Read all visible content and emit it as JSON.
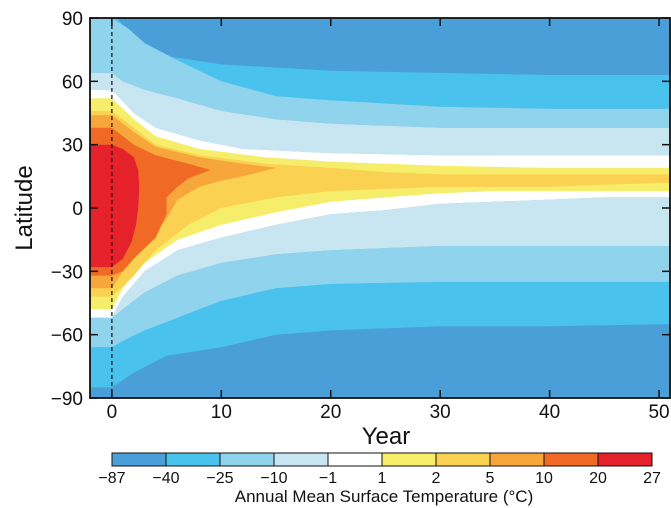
{
  "chart_data": {
    "type": "heatmap",
    "subtype": "filled-contour",
    "xlabel": "Year",
    "ylabel": "Latitude",
    "xlim": [
      -2,
      51
    ],
    "ylim": [
      -90,
      90
    ],
    "x_ticks": [
      0,
      10,
      20,
      30,
      40,
      50
    ],
    "y_ticks": [
      -90,
      -60,
      -30,
      0,
      30,
      60,
      90
    ],
    "x_tick_labels": [
      "0",
      "10",
      "20",
      "30",
      "40",
      "50"
    ],
    "y_tick_labels": [
      "−90",
      "−60",
      "−30",
      "0",
      "30",
      "60",
      "90"
    ],
    "reference_line_x": 0,
    "colorbar": {
      "title": "Annual Mean Surface Temperature (°C)",
      "levels": [
        "−87",
        "−40",
        "−25",
        "−10",
        "−1",
        "1",
        "2",
        "5",
        "10",
        "20",
        "27"
      ],
      "colors": [
        "#4a9fd8",
        "#49c3ed",
        "#8fd4ec",
        "#c8e6f1",
        "#ffffff",
        "#f6ee6a",
        "#fbd152",
        "#f7a63b",
        "#f06a25",
        "#e5212b"
      ]
    },
    "contours": [
      {
        "level_index": 0,
        "region": "north",
        "points": [
          [
            -2,
            90
          ],
          [
            51,
            90
          ],
          [
            51,
            63
          ],
          [
            40,
            63
          ],
          [
            30,
            64
          ],
          [
            20,
            65
          ],
          [
            10,
            68
          ],
          [
            5,
            72
          ],
          [
            2,
            80
          ],
          [
            0.5,
            90
          ]
        ]
      },
      {
        "level_index": 0,
        "region": "south",
        "points": [
          [
            -2,
            -90
          ],
          [
            -2,
            -85
          ],
          [
            0,
            -85
          ],
          [
            2,
            -78
          ],
          [
            5,
            -70
          ],
          [
            10,
            -66
          ],
          [
            15,
            -60
          ],
          [
            20,
            -58
          ],
          [
            30,
            -56
          ],
          [
            40,
            -56
          ],
          [
            51,
            -55
          ],
          [
            51,
            -90
          ]
        ]
      },
      {
        "level_index": 1,
        "region": "north",
        "points": [
          [
            0,
            90
          ],
          [
            1.5,
            85
          ],
          [
            3,
            78
          ],
          [
            6,
            70
          ],
          [
            10,
            60
          ],
          [
            15,
            53
          ],
          [
            20,
            51
          ],
          [
            30,
            48
          ],
          [
            40,
            47
          ],
          [
            51,
            47
          ],
          [
            51,
            63
          ],
          [
            40,
            63
          ],
          [
            30,
            64
          ],
          [
            20,
            65
          ],
          [
            10,
            68
          ],
          [
            5,
            72
          ],
          [
            2,
            80
          ],
          [
            0.5,
            90
          ]
        ]
      },
      {
        "level_index": 1,
        "region": "south",
        "points": [
          [
            -2,
            -85
          ],
          [
            0,
            -85
          ],
          [
            2,
            -78
          ],
          [
            5,
            -70
          ],
          [
            10,
            -66
          ],
          [
            15,
            -60
          ],
          [
            20,
            -58
          ],
          [
            30,
            -56
          ],
          [
            40,
            -56
          ],
          [
            51,
            -55
          ],
          [
            51,
            -35
          ],
          [
            40,
            -35
          ],
          [
            30,
            -35
          ],
          [
            20,
            -36
          ],
          [
            15,
            -38
          ],
          [
            10,
            -44
          ],
          [
            6,
            -52
          ],
          [
            3,
            -58
          ],
          [
            1,
            -63
          ],
          [
            0,
            -66
          ],
          [
            -2,
            -66
          ]
        ]
      },
      {
        "level_index": 2,
        "region": "north",
        "points": [
          [
            -2,
            90
          ],
          [
            0,
            90
          ],
          [
            1.5,
            85
          ],
          [
            3,
            78
          ],
          [
            6,
            70
          ],
          [
            10,
            60
          ],
          [
            15,
            53
          ],
          [
            20,
            51
          ],
          [
            30,
            48
          ],
          [
            40,
            47
          ],
          [
            51,
            47
          ],
          [
            51,
            38
          ],
          [
            40,
            38
          ],
          [
            30,
            38
          ],
          [
            20,
            40
          ],
          [
            15,
            42
          ],
          [
            10,
            46
          ],
          [
            6,
            52
          ],
          [
            3,
            56
          ],
          [
            1,
            60
          ],
          [
            0,
            64
          ],
          [
            -2,
            64
          ]
        ]
      },
      {
        "level_index": 2,
        "region": "south",
        "points": [
          [
            -2,
            -66
          ],
          [
            0,
            -66
          ],
          [
            1,
            -63
          ],
          [
            3,
            -58
          ],
          [
            6,
            -52
          ],
          [
            10,
            -44
          ],
          [
            15,
            -38
          ],
          [
            20,
            -36
          ],
          [
            30,
            -35
          ],
          [
            40,
            -35
          ],
          [
            51,
            -35
          ],
          [
            51,
            -18
          ],
          [
            40,
            -18
          ],
          [
            30,
            -18
          ],
          [
            20,
            -20
          ],
          [
            15,
            -22
          ],
          [
            10,
            -26
          ],
          [
            6,
            -32
          ],
          [
            3,
            -40
          ],
          [
            1,
            -48
          ],
          [
            0,
            -52
          ],
          [
            -2,
            -52
          ]
        ]
      },
      {
        "level_index": 3,
        "region": "north",
        "points": [
          [
            -2,
            64
          ],
          [
            0,
            64
          ],
          [
            1,
            60
          ],
          [
            3,
            56
          ],
          [
            6,
            52
          ],
          [
            10,
            46
          ],
          [
            15,
            42
          ],
          [
            20,
            40
          ],
          [
            30,
            38
          ],
          [
            40,
            38
          ],
          [
            51,
            38
          ],
          [
            51,
            25
          ],
          [
            40,
            25
          ],
          [
            30,
            25
          ],
          [
            20,
            26
          ],
          [
            12,
            28
          ],
          [
            8,
            32
          ],
          [
            4,
            38
          ],
          [
            2,
            45
          ],
          [
            0,
            56
          ],
          [
            -2,
            56
          ]
        ]
      },
      {
        "level_index": 3,
        "region": "south",
        "points": [
          [
            -2,
            -52
          ],
          [
            0,
            -52
          ],
          [
            1,
            -48
          ],
          [
            3,
            -40
          ],
          [
            6,
            -32
          ],
          [
            10,
            -26
          ],
          [
            15,
            -22
          ],
          [
            20,
            -20
          ],
          [
            30,
            -18
          ],
          [
            40,
            -18
          ],
          [
            51,
            -18
          ],
          [
            51,
            5
          ],
          [
            45,
            5
          ],
          [
            40,
            4
          ],
          [
            35,
            3
          ],
          [
            30,
            2
          ],
          [
            25,
            -1
          ],
          [
            20,
            -3
          ],
          [
            15,
            -8
          ],
          [
            10,
            -14
          ],
          [
            6,
            -20
          ],
          [
            3,
            -30
          ],
          [
            1,
            -42
          ],
          [
            0,
            -52
          ],
          [
            -2,
            -52
          ]
        ]
      },
      {
        "level_index": 4,
        "region": "band",
        "points": [
          [
            -2,
            56
          ],
          [
            0,
            56
          ],
          [
            2,
            45
          ],
          [
            4,
            38
          ],
          [
            8,
            32
          ],
          [
            12,
            28
          ],
          [
            20,
            26
          ],
          [
            30,
            25
          ],
          [
            40,
            25
          ],
          [
            51,
            25
          ],
          [
            51,
            5
          ],
          [
            45,
            5
          ],
          [
            40,
            4
          ],
          [
            35,
            3
          ],
          [
            30,
            2
          ],
          [
            25,
            -1
          ],
          [
            20,
            -3
          ],
          [
            15,
            -8
          ],
          [
            10,
            -14
          ],
          [
            6,
            -20
          ],
          [
            3,
            -30
          ],
          [
            1,
            -42
          ],
          [
            0,
            -52
          ],
          [
            -2,
            -52
          ]
        ]
      },
      {
        "level_index": 5,
        "region": "band",
        "points": [
          [
            -2,
            52
          ],
          [
            0,
            52
          ],
          [
            2,
            42
          ],
          [
            4,
            34
          ],
          [
            8,
            28
          ],
          [
            14,
            24
          ],
          [
            20,
            22
          ],
          [
            30,
            20
          ],
          [
            40,
            19
          ],
          [
            51,
            19
          ],
          [
            51,
            8
          ],
          [
            45,
            8
          ],
          [
            40,
            8
          ],
          [
            35,
            8
          ],
          [
            30,
            7
          ],
          [
            25,
            5
          ],
          [
            20,
            3
          ],
          [
            15,
            -2
          ],
          [
            10,
            -8
          ],
          [
            6,
            -15
          ],
          [
            3,
            -26
          ],
          [
            1,
            -38
          ],
          [
            0,
            -48
          ],
          [
            -2,
            -48
          ]
        ]
      },
      {
        "level_index": 6,
        "region": "band",
        "points": [
          [
            -2,
            46
          ],
          [
            0,
            46
          ],
          [
            2,
            38
          ],
          [
            4,
            30
          ],
          [
            8,
            25
          ],
          [
            14,
            21
          ],
          [
            20,
            19
          ],
          [
            25,
            17
          ],
          [
            30,
            16
          ],
          [
            40,
            16
          ],
          [
            51,
            16
          ],
          [
            51,
            12
          ],
          [
            45,
            11
          ],
          [
            40,
            10
          ],
          [
            30,
            10
          ],
          [
            25,
            9
          ],
          [
            20,
            8
          ],
          [
            15,
            5
          ],
          [
            10,
            0
          ],
          [
            7,
            -8
          ],
          [
            4,
            -20
          ],
          [
            2,
            -32
          ],
          [
            0,
            -42
          ],
          [
            -2,
            -42
          ]
        ]
      },
      {
        "level_index": 7,
        "region": "band",
        "points": [
          [
            -2,
            44
          ],
          [
            0,
            44
          ],
          [
            2,
            36
          ],
          [
            4,
            29
          ],
          [
            8,
            24
          ],
          [
            12,
            21
          ],
          [
            15,
            19
          ],
          [
            12,
            15
          ],
          [
            10,
            13
          ],
          [
            8,
            10
          ],
          [
            6,
            4
          ],
          [
            5,
            -5
          ],
          [
            3,
            -18
          ],
          [
            1,
            -30
          ],
          [
            0,
            -38
          ],
          [
            -2,
            -38
          ]
        ]
      },
      {
        "level_index": 8,
        "region": "band",
        "points": [
          [
            -2,
            38
          ],
          [
            0,
            38
          ],
          [
            2,
            30
          ],
          [
            4,
            25
          ],
          [
            7,
            21
          ],
          [
            9,
            18
          ],
          [
            7,
            14
          ],
          [
            6,
            10
          ],
          [
            5,
            5
          ],
          [
            5,
            -3
          ],
          [
            4,
            -14
          ],
          [
            2,
            -24
          ],
          [
            1,
            -30
          ],
          [
            0,
            -32
          ],
          [
            -2,
            -32
          ]
        ]
      },
      {
        "level_index": 9,
        "region": "band",
        "points": [
          [
            -2,
            30
          ],
          [
            0,
            30
          ],
          [
            1,
            28
          ],
          [
            2,
            24
          ],
          [
            2.4,
            18
          ],
          [
            2.5,
            10
          ],
          [
            2.4,
            0
          ],
          [
            2.2,
            -8
          ],
          [
            1.8,
            -16
          ],
          [
            1,
            -24
          ],
          [
            0,
            -28
          ],
          [
            -2,
            -28
          ]
        ]
      }
    ]
  }
}
